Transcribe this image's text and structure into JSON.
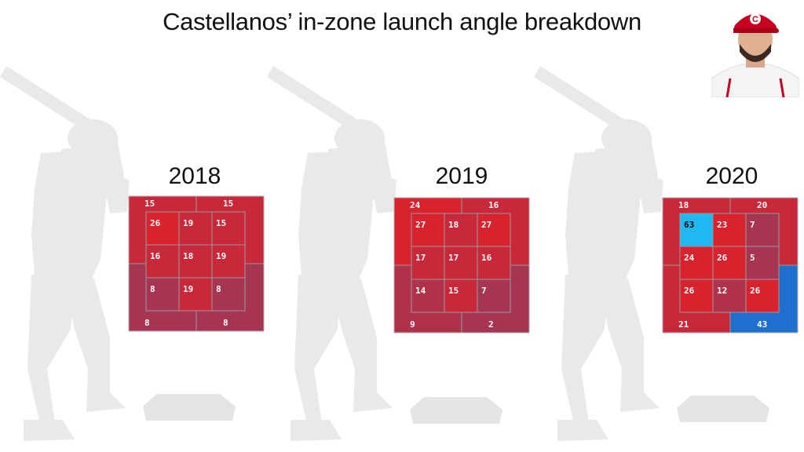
{
  "title": "Castellanos’ in-zone launch angle breakdown",
  "colors": {
    "red_bright": "#d8232e",
    "red_mid": "#c8283a",
    "red_dark": "#b0314a",
    "red_purple": "#a53552",
    "blue_light": "#21b8f2",
    "blue_dark": "#1f6fcf",
    "silhouette": "#e9e9e9"
  },
  "chart_data": [
    {
      "type": "heatmap",
      "title": "2018",
      "outer": {
        "top_left": 15,
        "top_right": 15,
        "bottom_left": 8,
        "bottom_right": 8
      },
      "inner": [
        [
          26,
          19,
          15
        ],
        [
          16,
          18,
          19
        ],
        [
          8,
          19,
          8
        ]
      ]
    },
    {
      "type": "heatmap",
      "title": "2019",
      "outer": {
        "top_left": 24,
        "top_right": 16,
        "bottom_left": 9,
        "bottom_right": 2
      },
      "inner": [
        [
          27,
          18,
          27
        ],
        [
          17,
          17,
          16
        ],
        [
          14,
          15,
          7
        ]
      ]
    },
    {
      "type": "heatmap",
      "title": "2020",
      "outer": {
        "top_left": 18,
        "top_right": 20,
        "bottom_left": 21,
        "bottom_right": 43
      },
      "inner": [
        [
          63,
          23,
          7
        ],
        [
          24,
          26,
          5
        ],
        [
          26,
          12,
          26
        ]
      ]
    }
  ]
}
